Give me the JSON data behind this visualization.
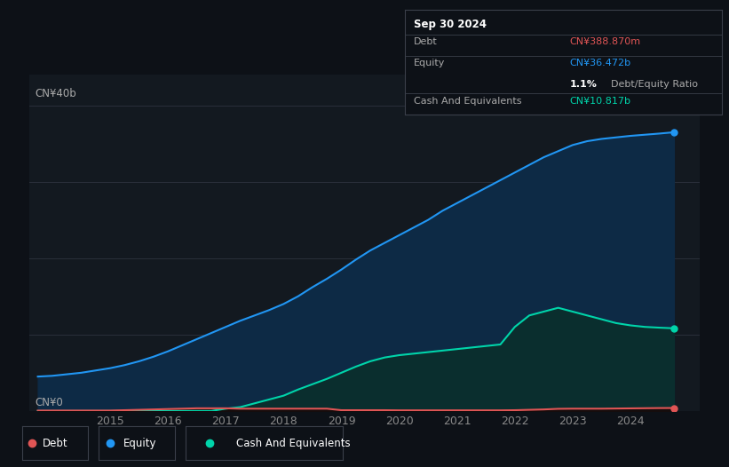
{
  "background_color": "#0d1117",
  "plot_bg_color": "#131920",
  "grid_color": "#2a2f3a",
  "equity_color": "#2196f3",
  "equity_fill": "#0d2a45",
  "debt_color": "#e05555",
  "cash_color": "#00d4aa",
  "cash_fill": "#0a2e2e",
  "tooltip_bg": "#0d1117",
  "tooltip_border": "#3a3f4a",
  "years": [
    2013.75,
    2014.0,
    2014.25,
    2014.5,
    2014.75,
    2015.0,
    2015.25,
    2015.5,
    2015.75,
    2016.0,
    2016.25,
    2016.5,
    2016.75,
    2017.0,
    2017.25,
    2017.5,
    2017.75,
    2018.0,
    2018.25,
    2018.5,
    2018.75,
    2019.0,
    2019.25,
    2019.5,
    2019.75,
    2020.0,
    2020.25,
    2020.5,
    2020.75,
    2021.0,
    2021.25,
    2021.5,
    2021.75,
    2022.0,
    2022.25,
    2022.5,
    2022.75,
    2023.0,
    2023.25,
    2023.5,
    2023.75,
    2024.0,
    2024.25,
    2024.5,
    2024.75
  ],
  "equity": [
    4.5,
    4.6,
    4.8,
    5.0,
    5.3,
    5.6,
    6.0,
    6.5,
    7.1,
    7.8,
    8.6,
    9.4,
    10.2,
    11.0,
    11.8,
    12.5,
    13.2,
    14.0,
    15.0,
    16.2,
    17.3,
    18.5,
    19.8,
    21.0,
    22.0,
    23.0,
    24.0,
    25.0,
    26.2,
    27.2,
    28.2,
    29.2,
    30.2,
    31.2,
    32.2,
    33.2,
    34.0,
    34.8,
    35.3,
    35.6,
    35.8,
    36.0,
    36.15,
    36.3,
    36.472
  ],
  "cash": [
    0.0,
    0.0,
    0.0,
    0.0,
    0.0,
    0.0,
    0.0,
    0.0,
    0.0,
    0.0,
    0.0,
    0.0,
    0.0,
    0.3,
    0.5,
    1.0,
    1.5,
    2.0,
    2.8,
    3.5,
    4.2,
    5.0,
    5.8,
    6.5,
    7.0,
    7.3,
    7.5,
    7.7,
    7.9,
    8.1,
    8.3,
    8.5,
    8.7,
    11.0,
    12.5,
    13.0,
    13.5,
    13.0,
    12.5,
    12.0,
    11.5,
    11.2,
    11.0,
    10.9,
    10.817
  ],
  "debt": [
    0.05,
    0.05,
    0.05,
    0.05,
    0.05,
    0.05,
    0.1,
    0.15,
    0.2,
    0.25,
    0.3,
    0.35,
    0.35,
    0.35,
    0.3,
    0.3,
    0.3,
    0.3,
    0.3,
    0.3,
    0.3,
    0.1,
    0.1,
    0.1,
    0.1,
    0.08,
    0.08,
    0.08,
    0.08,
    0.08,
    0.08,
    0.08,
    0.08,
    0.1,
    0.15,
    0.2,
    0.28,
    0.3,
    0.3,
    0.3,
    0.32,
    0.34,
    0.36,
    0.38,
    0.389
  ],
  "ylim": [
    0,
    44
  ],
  "xlim": [
    2013.6,
    2025.2
  ],
  "marker_x": 2024.75,
  "debt_marker_y": 0.389,
  "equity_marker_y": 36.472,
  "cash_marker_y": 10.817,
  "ylabel_top": "CN¥40b",
  "ylabel_bottom": "CN¥0",
  "x_tick_positions": [
    2015,
    2016,
    2017,
    2018,
    2019,
    2020,
    2021,
    2022,
    2023,
    2024
  ],
  "x_labels": [
    "2015",
    "2016",
    "2017",
    "2018",
    "2019",
    "2020",
    "2021",
    "2022",
    "2023",
    "2024"
  ],
  "tooltip": {
    "date": "Sep 30 2024",
    "debt_label": "Debt",
    "debt_value": "CN¥388.870m",
    "equity_label": "Equity",
    "equity_value": "CN¥36.472b",
    "ratio_value": "1.1%",
    "ratio_label": "Debt/Equity Ratio",
    "cash_label": "Cash And Equivalents",
    "cash_value": "CN¥10.817b"
  },
  "legend_items": [
    {
      "label": "Debt",
      "color": "#e05555"
    },
    {
      "label": "Equity",
      "color": "#2196f3"
    },
    {
      "label": "Cash And Equivalents",
      "color": "#00d4aa"
    }
  ]
}
